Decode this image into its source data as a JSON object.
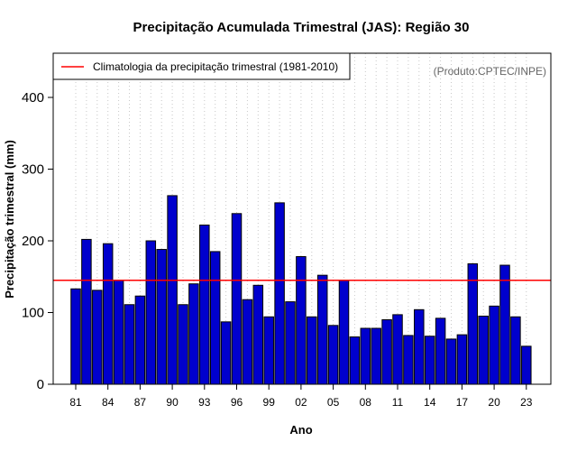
{
  "chart_data": {
    "type": "bar",
    "title": "Precipitação Acumulada Trimestral (JAS): Região 30",
    "xlabel": "Ano",
    "ylabel": "Precipitação trimestral (mm)",
    "ylim": [
      0,
      460
    ],
    "yticks": [
      0,
      100,
      200,
      300,
      400
    ],
    "xtick_labels": [
      "81",
      "84",
      "87",
      "90",
      "93",
      "96",
      "99",
      "02",
      "05",
      "08",
      "11",
      "14",
      "17",
      "20",
      "23"
    ],
    "grid": "vertical dotted per year",
    "categories": [
      "1981",
      "1982",
      "1983",
      "1984",
      "1985",
      "1986",
      "1987",
      "1988",
      "1989",
      "1990",
      "1991",
      "1992",
      "1993",
      "1994",
      "1995",
      "1996",
      "1997",
      "1998",
      "1999",
      "2000",
      "2001",
      "2002",
      "2003",
      "2004",
      "2005",
      "2006",
      "2007",
      "2008",
      "2009",
      "2010",
      "2011",
      "2012",
      "2013",
      "2014",
      "2015",
      "2016",
      "2017",
      "2018",
      "2019",
      "2020",
      "2021",
      "2022",
      "2023"
    ],
    "values": [
      133,
      202,
      131,
      196,
      145,
      111,
      123,
      200,
      188,
      263,
      111,
      140,
      222,
      185,
      87,
      238,
      118,
      138,
      94,
      253,
      115,
      178,
      94,
      152,
      82,
      145,
      66,
      78,
      78,
      90,
      97,
      68,
      104,
      67,
      92,
      63,
      69,
      168,
      95,
      109,
      166,
      94,
      53
    ],
    "bar_color": "#0000cd",
    "climatology": {
      "value": 145,
      "color": "#ff0000",
      "legend_label": "Climatologia da precipitação trimestral (1981-2010)"
    },
    "legend_position": "top-left",
    "source_note": "(Produto:CPTEC/INPE)"
  }
}
